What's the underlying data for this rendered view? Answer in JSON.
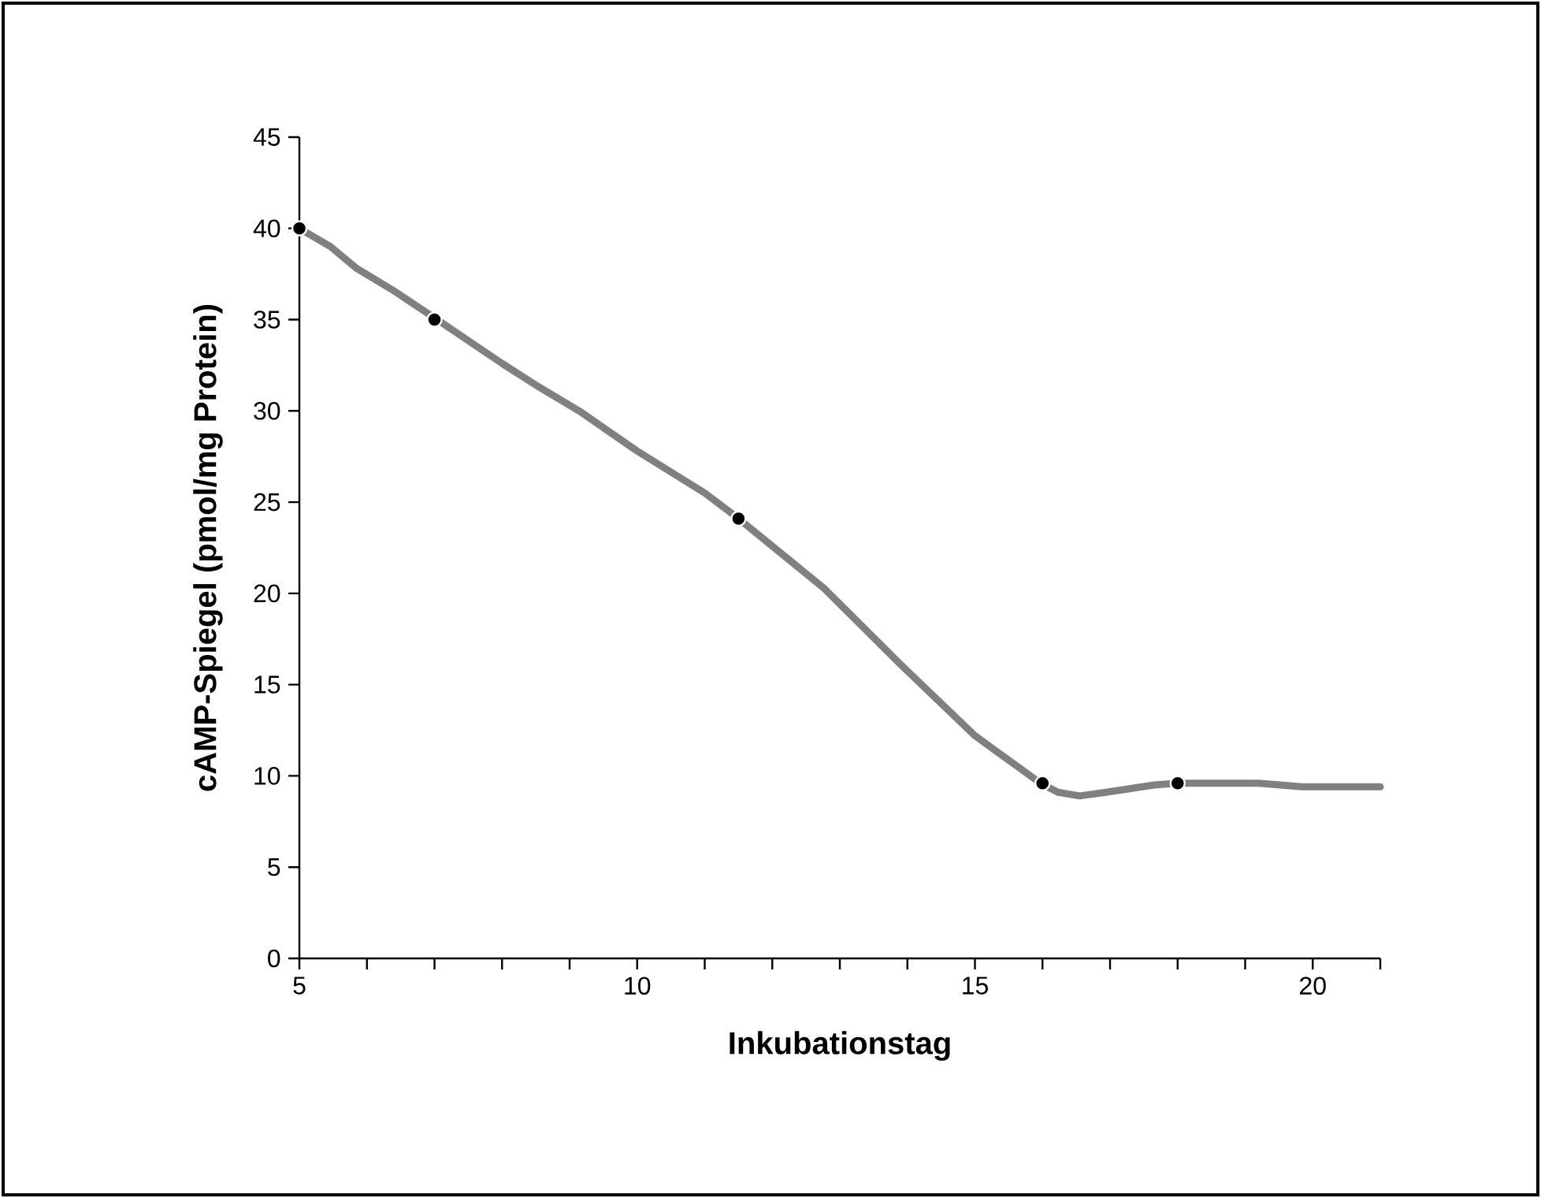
{
  "chart_data": {
    "type": "line",
    "xlabel": "Inkubationstag",
    "ylabel": "cAMP-Spiegel (pmol/mg Protein)",
    "xlim": [
      5,
      21
    ],
    "ylim": [
      0,
      45
    ],
    "xticks": [
      5,
      {
        "value": 6,
        "label": null
      },
      {
        "value": 7,
        "label": null
      },
      {
        "value": 8,
        "label": null
      },
      {
        "value": 9,
        "label": null
      },
      10,
      {
        "value": 11,
        "label": null
      },
      {
        "value": 12,
        "label": null
      },
      {
        "value": 13,
        "label": null
      },
      {
        "value": 14,
        "label": null
      },
      15,
      {
        "value": 16,
        "label": null
      },
      {
        "value": 17,
        "label": null
      },
      {
        "value": 18,
        "label": null
      },
      {
        "value": 19,
        "label": null
      },
      20,
      {
        "value": 21,
        "label": null
      }
    ],
    "yticks": [
      0,
      5,
      10,
      15,
      20,
      25,
      30,
      35,
      40,
      45
    ],
    "grid": false,
    "legend": false,
    "series": [
      {
        "color": "#808080",
        "marker": "none",
        "line_style": "solid",
        "x": [
          5,
          5.46,
          5.85,
          6.39,
          7,
          8,
          8.55,
          9.14,
          10,
          11,
          11.5,
          12.76,
          13.9,
          15,
          15.97,
          16.23,
          16.55,
          16.94,
          17.65,
          18,
          19.2,
          19.84,
          21
        ],
        "values": [
          40,
          39,
          37.8,
          36.6,
          35.1,
          32.6,
          31.3,
          30,
          27.8,
          25.5,
          24.1,
          20.3,
          16.1,
          12.2,
          9.6,
          9.1,
          8.9,
          9.1,
          9.5,
          9.6,
          9.6,
          9.4,
          9.4
        ]
      },
      {
        "type": "scatter",
        "color": "#000000",
        "marker": "circle",
        "x": [
          5,
          7,
          11.5,
          16,
          18
        ],
        "values": [
          40,
          35,
          24.1,
          9.6,
          9.6
        ]
      }
    ]
  }
}
